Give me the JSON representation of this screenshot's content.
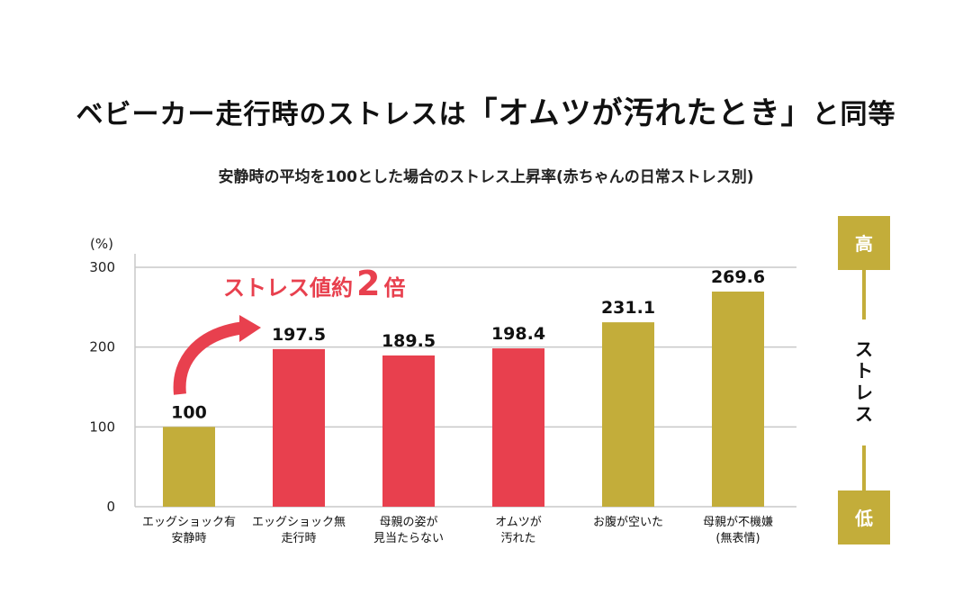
{
  "title": {
    "before": "ベビーカー走行時のストレスは",
    "quote": "「オムツが汚れたとき」",
    "after": "と同等"
  },
  "subtitle": "安静時の平均を100とした場合のストレス上昇率(赤ちゃんの日常ストレス別)",
  "colors": {
    "olive": "#c3ad3a",
    "red": "#e8404e",
    "grid": "#c8c8c8"
  },
  "annotation": {
    "text": "ストレス値約",
    "multiplier": "2",
    "unit": "倍"
  },
  "stress_scale": {
    "high": "高",
    "low": "低",
    "label": "ストレス"
  },
  "chart_data": {
    "type": "bar",
    "unit_label": "(%)",
    "ylim": [
      0,
      300
    ],
    "yticks": [
      0,
      100,
      200,
      300
    ],
    "grid": true,
    "categories": [
      [
        "エッグショック有",
        "安静時"
      ],
      [
        "エッグショック無",
        "走行時"
      ],
      [
        "母親の姿が",
        "見当たらない"
      ],
      [
        "オムツが",
        "汚れた"
      ],
      [
        "お腹が空いた"
      ],
      [
        "母親が不機嫌",
        "(無表情)"
      ]
    ],
    "values": [
      100,
      197.5,
      189.5,
      198.4,
      231.1,
      269.6
    ],
    "value_labels": [
      "100",
      "197.5",
      "189.5",
      "198.4",
      "231.1",
      "269.6"
    ],
    "bar_colors": [
      "#c3ad3a",
      "#e8404e",
      "#e8404e",
      "#e8404e",
      "#c3ad3a",
      "#c3ad3a"
    ]
  }
}
